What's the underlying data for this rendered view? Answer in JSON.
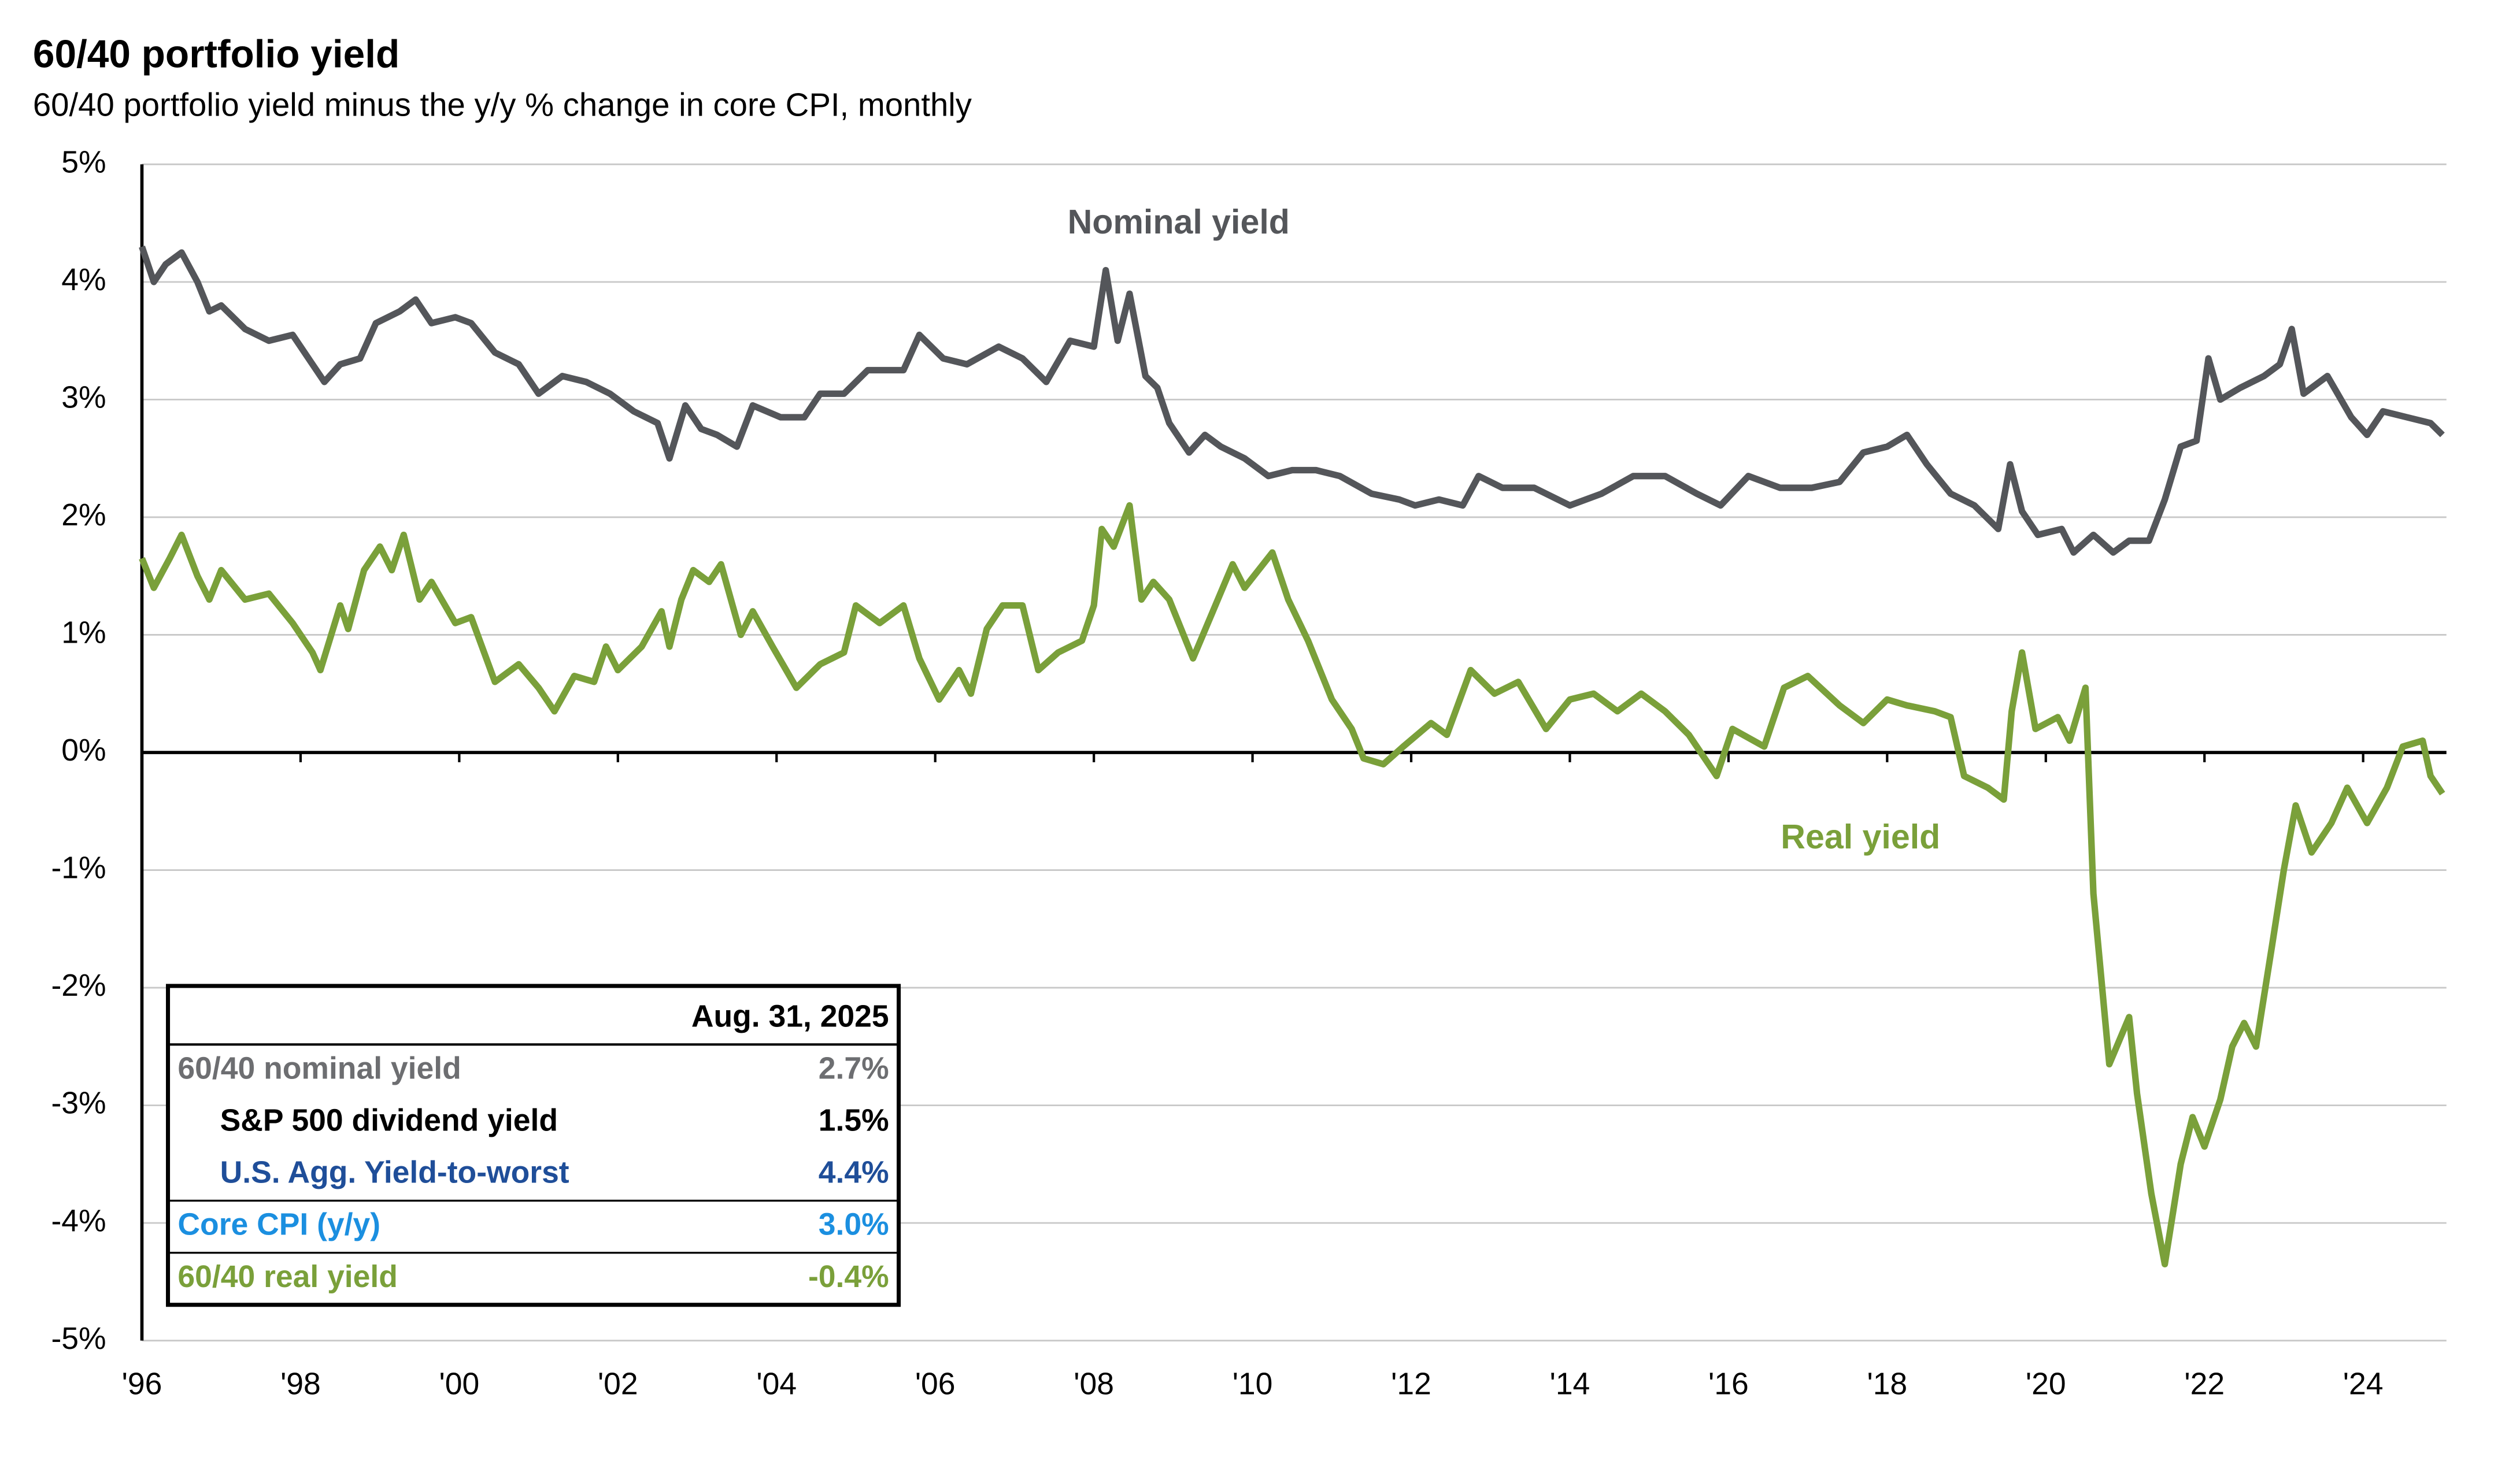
{
  "chart_data": {
    "type": "line",
    "title": "60/40 portfolio yield",
    "subtitle": "60/40 portfolio yield minus the y/y % change in core CPI, monthly",
    "xlim": [
      1996,
      2025.05
    ],
    "xticks": [
      {
        "value": 1996,
        "label": "'96"
      },
      {
        "value": 1998,
        "label": "'98"
      },
      {
        "value": 2000,
        "label": "'00"
      },
      {
        "value": 2002,
        "label": "'02"
      },
      {
        "value": 2004,
        "label": "'04"
      },
      {
        "value": 2006,
        "label": "'06"
      },
      {
        "value": 2008,
        "label": "'08"
      },
      {
        "value": 2010,
        "label": "'10"
      },
      {
        "value": 2012,
        "label": "'12"
      },
      {
        "value": 2014,
        "label": "'14"
      },
      {
        "value": 2016,
        "label": "'16"
      },
      {
        "value": 2018,
        "label": "'18"
      },
      {
        "value": 2020,
        "label": "'20"
      },
      {
        "value": 2022,
        "label": "'22"
      },
      {
        "value": 2024,
        "label": "'24"
      }
    ],
    "ylim": [
      -5,
      5
    ],
    "yticks": [
      {
        "value": -5,
        "label": "-5%"
      },
      {
        "value": -4,
        "label": "-4%"
      },
      {
        "value": -3,
        "label": "-3%"
      },
      {
        "value": -2,
        "label": "-2%"
      },
      {
        "value": -1,
        "label": "-1%"
      },
      {
        "value": 0,
        "label": "0%"
      },
      {
        "value": 1,
        "label": "1%"
      },
      {
        "value": 2,
        "label": "2%"
      },
      {
        "value": 3,
        "label": "3%"
      },
      {
        "value": 4,
        "label": "4%"
      },
      {
        "value": 5,
        "label": "5%"
      }
    ],
    "grid": true,
    "series": [
      {
        "name": "Nominal yield",
        "color": "#54565a",
        "x": [
          1996.0,
          1996.15,
          1996.3,
          1996.5,
          1996.7,
          1996.85,
          1997.0,
          1997.3,
          1997.6,
          1997.9,
          1998.15,
          1998.3,
          1998.5,
          1998.75,
          1998.95,
          1999.25,
          1999.45,
          1999.65,
          1999.95,
          2000.15,
          2000.45,
          2000.75,
          2001.0,
          2001.3,
          2001.6,
          2001.9,
          2002.2,
          2002.5,
          2002.65,
          2002.85,
          2003.05,
          2003.25,
          2003.5,
          2003.7,
          2004.05,
          2004.35,
          2004.55,
          2004.85,
          2005.15,
          2005.6,
          2005.8,
          2006.1,
          2006.4,
          2006.8,
          2007.1,
          2007.4,
          2007.7,
          2008.0,
          2008.15,
          2008.3,
          2008.45,
          2008.65,
          2008.8,
          2008.95,
          2009.2,
          2009.4,
          2009.6,
          2009.9,
          2010.2,
          2010.5,
          2010.8,
          2011.1,
          2011.5,
          2011.85,
          2012.05,
          2012.35,
          2012.65,
          2012.85,
          2013.15,
          2013.55,
          2014.0,
          2014.4,
          2014.8,
          2015.2,
          2015.6,
          2015.9,
          2016.25,
          2016.65,
          2017.05,
          2017.4,
          2017.7,
          2018.0,
          2018.25,
          2018.5,
          2018.8,
          2019.1,
          2019.4,
          2019.55,
          2019.7,
          2019.9,
          2020.2,
          2020.35,
          2020.6,
          2020.85,
          2021.05,
          2021.3,
          2021.5,
          2021.7,
          2021.9,
          2022.05,
          2022.2,
          2022.45,
          2022.75,
          2022.95,
          2023.1,
          2023.25,
          2023.55,
          2023.85,
          2024.05,
          2024.25,
          2024.55,
          2024.85,
          2025.0
        ],
        "values": [
          4.3,
          4.0,
          4.15,
          4.25,
          4.0,
          3.75,
          3.8,
          3.6,
          3.5,
          3.55,
          3.3,
          3.15,
          3.3,
          3.35,
          3.65,
          3.75,
          3.85,
          3.65,
          3.7,
          3.65,
          3.4,
          3.3,
          3.05,
          3.2,
          3.15,
          3.05,
          2.9,
          2.8,
          2.5,
          2.95,
          2.75,
          2.7,
          2.6,
          2.95,
          2.85,
          2.85,
          3.05,
          3.05,
          3.25,
          3.25,
          3.55,
          3.35,
          3.3,
          3.45,
          3.35,
          3.15,
          3.5,
          3.45,
          4.1,
          3.5,
          3.9,
          3.2,
          3.1,
          2.8,
          2.55,
          2.7,
          2.6,
          2.5,
          2.35,
          2.4,
          2.4,
          2.35,
          2.2,
          2.15,
          2.1,
          2.15,
          2.1,
          2.35,
          2.25,
          2.25,
          2.1,
          2.2,
          2.35,
          2.35,
          2.2,
          2.1,
          2.35,
          2.25,
          2.25,
          2.3,
          2.55,
          2.6,
          2.7,
          2.45,
          2.2,
          2.1,
          1.9,
          2.45,
          2.05,
          1.85,
          1.9,
          1.7,
          1.85,
          1.7,
          1.8,
          1.8,
          2.15,
          2.6,
          2.65,
          3.35,
          3.0,
          3.1,
          3.2,
          3.3,
          3.6,
          3.05,
          3.2,
          2.85,
          2.7,
          2.9,
          2.85,
          2.8,
          2.7
        ]
      },
      {
        "name": "Real yield",
        "color": "#7aa03a",
        "x": [
          1996.0,
          1996.15,
          1996.35,
          1996.5,
          1996.7,
          1996.85,
          1997.0,
          1997.3,
          1997.6,
          1997.9,
          1998.15,
          1998.25,
          1998.5,
          1998.6,
          1998.8,
          1999.0,
          1999.15,
          1999.3,
          1999.5,
          1999.65,
          1999.95,
          2000.15,
          2000.45,
          2000.75,
          2001.0,
          2001.2,
          2001.45,
          2001.7,
          2001.85,
          2002.0,
          2002.3,
          2002.55,
          2002.65,
          2002.8,
          2002.95,
          2003.15,
          2003.3,
          2003.55,
          2003.7,
          2003.95,
          2004.25,
          2004.55,
          2004.85,
          2005.0,
          2005.3,
          2005.6,
          2005.8,
          2006.05,
          2006.3,
          2006.45,
          2006.65,
          2006.85,
          2007.1,
          2007.3,
          2007.55,
          2007.85,
          2008.0,
          2008.1,
          2008.25,
          2008.45,
          2008.6,
          2008.75,
          2008.95,
          2009.25,
          2009.5,
          2009.75,
          2009.9,
          2010.25,
          2010.45,
          2010.7,
          2011.0,
          2011.25,
          2011.4,
          2011.65,
          2011.9,
          2012.25,
          2012.45,
          2012.75,
          2013.05,
          2013.35,
          2013.7,
          2014.0,
          2014.3,
          2014.6,
          2014.9,
          2015.2,
          2015.5,
          2015.85,
          2016.05,
          2016.45,
          2016.7,
          2017.0,
          2017.4,
          2017.7,
          2018.0,
          2018.25,
          2018.6,
          2018.8,
          2018.97,
          2019.27,
          2019.47,
          2019.57,
          2019.7,
          2019.87,
          2020.15,
          2020.3,
          2020.5,
          2020.6,
          2020.8,
          2021.05,
          2021.15,
          2021.33,
          2021.5,
          2021.7,
          2021.85,
          2022.0,
          2022.2,
          2022.35,
          2022.5,
          2022.65,
          2022.85,
          2023.0,
          2023.15,
          2023.35,
          2023.6,
          2023.8,
          2024.05,
          2024.3,
          2024.5,
          2024.75,
          2024.85,
          2025.0
        ],
        "values": [
          1.65,
          1.4,
          1.65,
          1.85,
          1.5,
          1.3,
          1.55,
          1.3,
          1.35,
          1.1,
          0.85,
          0.7,
          1.25,
          1.05,
          1.55,
          1.75,
          1.55,
          1.85,
          1.3,
          1.45,
          1.1,
          1.15,
          0.6,
          0.75,
          0.55,
          0.35,
          0.65,
          0.6,
          0.9,
          0.7,
          0.9,
          1.2,
          0.9,
          1.3,
          1.55,
          1.45,
          1.6,
          1.0,
          1.2,
          0.9,
          0.55,
          0.75,
          0.85,
          1.25,
          1.1,
          1.25,
          0.8,
          0.45,
          0.7,
          0.5,
          1.05,
          1.25,
          1.25,
          0.7,
          0.85,
          0.95,
          1.25,
          1.9,
          1.75,
          2.1,
          1.3,
          1.45,
          1.3,
          0.8,
          1.2,
          1.6,
          1.4,
          1.7,
          1.3,
          0.95,
          0.45,
          0.2,
          -0.05,
          -0.1,
          0.05,
          0.25,
          0.15,
          0.7,
          0.5,
          0.6,
          0.2,
          0.45,
          0.5,
          0.35,
          0.5,
          0.35,
          0.15,
          -0.2,
          0.2,
          0.05,
          0.55,
          0.65,
          0.4,
          0.25,
          0.45,
          0.4,
          0.35,
          0.3,
          -0.2,
          -0.3,
          -0.4,
          0.35,
          0.85,
          0.2,
          0.3,
          0.1,
          0.55,
          -1.2,
          -2.65,
          -2.25,
          -2.9,
          -3.75,
          -4.35,
          -3.5,
          -3.1,
          -3.35,
          -2.95,
          -2.5,
          -2.3,
          -2.5,
          -1.65,
          -1.0,
          -0.45,
          -0.85,
          -0.6,
          -0.3,
          -0.6,
          -0.3,
          0.05,
          0.1,
          -0.2,
          -0.35
        ]
      }
    ],
    "table": {
      "header": "Aug. 31, 2025",
      "rows": [
        {
          "label": "60/40 nominal yield",
          "value": "2.7%",
          "color": "#6d6e71",
          "indent": false
        },
        {
          "label": "S&P 500 dividend yield",
          "value": "1.5%",
          "color": "#000000",
          "indent": true
        },
        {
          "label": "U.S. Agg. Yield-to-worst",
          "value": "4.4%",
          "color": "#1f4e99",
          "indent": true
        },
        {
          "label": "Core CPI (y/y)",
          "value": "3.0%",
          "color": "#1b8fe0",
          "indent": false
        },
        {
          "label": "60/40 real yield",
          "value": "-0.4%",
          "color": "#7aa03a",
          "indent": false
        }
      ]
    }
  }
}
